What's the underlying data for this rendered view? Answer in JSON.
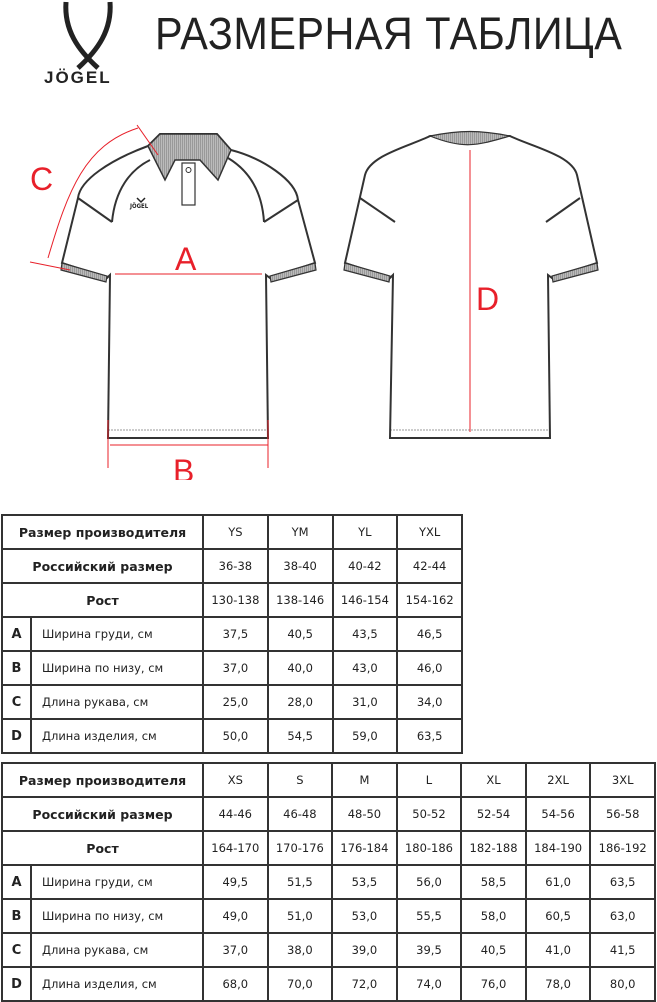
{
  "header": {
    "brand": "JÖGEL",
    "title": "РАЗМЕРНАЯ ТАБЛИЦА"
  },
  "diagram": {
    "labels": {
      "A": "A",
      "B": "B",
      "C": "C",
      "D": "D"
    },
    "chest_logo": "JÖGEL",
    "measure_color": "#e8202a"
  },
  "table_kids": {
    "header_label": "Размер производителя",
    "ru_label": "Российский размер",
    "height_label": "Рост",
    "sizes": [
      "YS",
      "YM",
      "YL",
      "YXL"
    ],
    "ru_sizes": [
      "36-38",
      "38-40",
      "40-42",
      "42-44"
    ],
    "heights": [
      "130-138",
      "138-146",
      "146-154",
      "154-162"
    ],
    "rows": [
      {
        "letter": "A",
        "label": "Ширина груди, см",
        "values": [
          "37,5",
          "40,5",
          "43,5",
          "46,5"
        ]
      },
      {
        "letter": "B",
        "label": "Ширина по низу, см",
        "values": [
          "37,0",
          "40,0",
          "43,0",
          "46,0"
        ]
      },
      {
        "letter": "C",
        "label": "Длина рукава, см",
        "values": [
          "25,0",
          "28,0",
          "31,0",
          "34,0"
        ]
      },
      {
        "letter": "D",
        "label": "Длина изделия, см",
        "values": [
          "50,0",
          "54,5",
          "59,0",
          "63,5"
        ]
      }
    ]
  },
  "table_adult": {
    "header_label": "Размер производителя",
    "ru_label": "Российский размер",
    "height_label": "Рост",
    "sizes": [
      "XS",
      "S",
      "M",
      "L",
      "XL",
      "2XL",
      "3XL"
    ],
    "ru_sizes": [
      "44-46",
      "46-48",
      "48-50",
      "50-52",
      "52-54",
      "54-56",
      "56-58"
    ],
    "heights": [
      "164-170",
      "170-176",
      "176-184",
      "180-186",
      "182-188",
      "184-190",
      "186-192"
    ],
    "rows": [
      {
        "letter": "A",
        "label": "Ширина груди, см",
        "values": [
          "49,5",
          "51,5",
          "53,5",
          "56,0",
          "58,5",
          "61,0",
          "63,5"
        ]
      },
      {
        "letter": "B",
        "label": "Ширина по низу, см",
        "values": [
          "49,0",
          "51,0",
          "53,0",
          "55,5",
          "58,0",
          "60,5",
          "63,0"
        ]
      },
      {
        "letter": "C",
        "label": "Длина рукава, см",
        "values": [
          "37,0",
          "38,0",
          "39,0",
          "39,5",
          "40,5",
          "41,0",
          "41,5"
        ]
      },
      {
        "letter": "D",
        "label": "Длина изделия, см",
        "values": [
          "68,0",
          "70,0",
          "72,0",
          "74,0",
          "76,0",
          "78,0",
          "80,0"
        ]
      }
    ]
  }
}
